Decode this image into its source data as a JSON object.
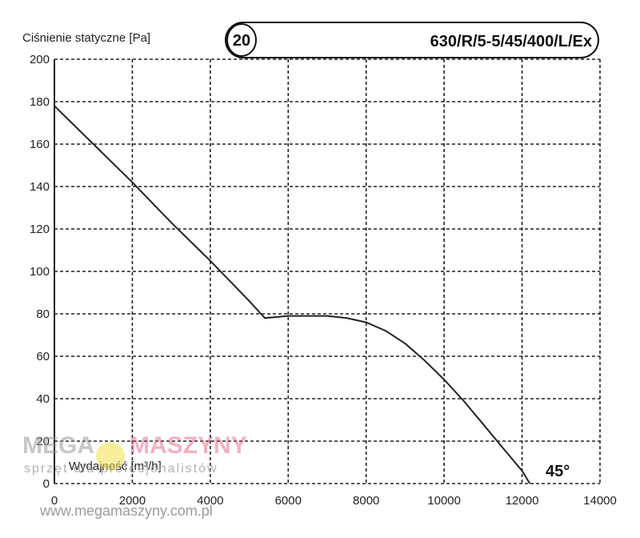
{
  "chart_data": {
    "type": "line",
    "ylabel": "Ciśnienie statyczne [Pa]",
    "xlabel": "Wydajność [m³/h]",
    "xlim": [
      0,
      14000
    ],
    "ylim": [
      0,
      200
    ],
    "xticks": [
      0,
      2000,
      4000,
      6000,
      8000,
      10000,
      12000,
      14000
    ],
    "yticks": [
      0,
      20,
      40,
      60,
      80,
      100,
      120,
      140,
      160,
      180,
      200
    ],
    "grid": true,
    "series": [
      {
        "x": [
          0,
          1000,
          2000,
          3000,
          4000,
          5000,
          5400,
          6000,
          7000,
          7500,
          8000,
          8500,
          9000,
          9500,
          10000,
          10500,
          11000,
          11500,
          12000,
          12200
        ],
        "y": [
          178,
          160,
          142,
          123,
          105,
          86,
          78,
          79,
          79,
          78,
          76,
          72,
          66,
          58,
          49,
          39,
          28,
          17,
          6,
          0
        ]
      }
    ],
    "annotations": {
      "curve_number": "20",
      "model": "630/R/5-5/45/400/L/Ex",
      "angle": "45°"
    }
  },
  "watermark": {
    "brand_left": "MEGA",
    "brand_right": "MASZYNY",
    "tagline": "sprzęt dla profesjonalistów",
    "url": "www.megamaszyny.com.pl",
    "colors": {
      "gray": "#9a9a9a",
      "pink": "#e0567a"
    }
  }
}
